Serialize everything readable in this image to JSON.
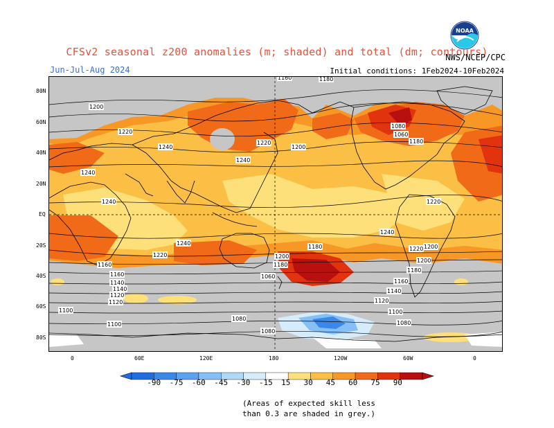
{
  "header": {
    "title": "CFSv2 seasonal z200 anomalies (m; shaded) and total (dm; contours)",
    "season": "Jun-Jul-Aug 2024",
    "initial_conditions": "Initial conditions: 1Feb2024-10Feb2024",
    "agency": "NWS/NCEP/CPC",
    "logo_text": "NOAA"
  },
  "axes": {
    "latitudes": [
      "80N",
      "60N",
      "40N",
      "20N",
      "EQ",
      "20S",
      "40S",
      "60S",
      "80S"
    ],
    "longitudes": [
      "0",
      "60E",
      "120E",
      "180",
      "120W",
      "60W",
      "0"
    ]
  },
  "contours": {
    "labels": [
      "1160",
      "1180",
      "1200",
      "1220",
      "1240",
      "1240",
      "1240",
      "1240",
      "1240",
      "1220",
      "1220",
      "1200",
      "1200",
      "1180",
      "1180",
      "1160",
      "1160",
      "1140",
      "1140",
      "1120",
      "1120",
      "1100",
      "1100",
      "1080",
      "1080",
      "1060",
      "1060",
      "1080",
      "1180",
      "1200",
      "1220",
      "1240",
      "1220",
      "1200",
      "1180",
      "1160",
      "1140",
      "1120",
      "1100",
      "1080"
    ]
  },
  "colorbar": {
    "ticks": [
      "-90",
      "-75",
      "-60",
      "-45",
      "-30",
      "-15",
      "15",
      "30",
      "45",
      "60",
      "75",
      "90"
    ],
    "colors": [
      "#1e6ee0",
      "#3a88ea",
      "#5aa2f0",
      "#86bff5",
      "#b2d8f8",
      "#d7ecfb",
      "#ffffff",
      "#fde07a",
      "#fbbf45",
      "#f79726",
      "#f06a18",
      "#e0330e",
      "#b80f0f"
    ]
  },
  "note": {
    "line1": "(Areas of expected skill less",
    "line2": "than 0.3 are shaded in grey.)"
  },
  "colors": {
    "low_skill_grey": "#c6c6c6",
    "title_red": "#e8503a",
    "season_blue": "#3c6ccf"
  }
}
